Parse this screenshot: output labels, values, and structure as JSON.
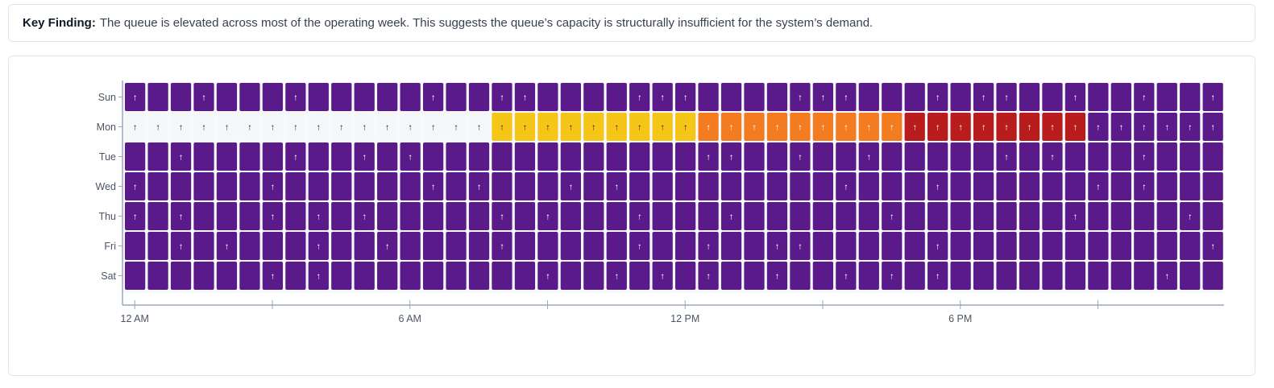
{
  "finding": {
    "label": "Key Finding:",
    "text": "The queue is elevated across most of the operating week. This suggests the queue’s capacity is structurally insufficient for the system’s demand."
  },
  "chart_data": {
    "type": "heatmap",
    "title": "",
    "xlabel": "",
    "ylabel": "",
    "rows": [
      "Sun",
      "Mon",
      "Tue",
      "Wed",
      "Thu",
      "Fri",
      "Sat"
    ],
    "intervals_per_row": 48,
    "interval_minutes": 30,
    "x_ticks": [
      {
        "hour": 0,
        "label": "12 AM"
      },
      {
        "hour": 3,
        "label": ""
      },
      {
        "hour": 6,
        "label": "6 AM"
      },
      {
        "hour": 9,
        "label": ""
      },
      {
        "hour": 12,
        "label": "12 PM"
      },
      {
        "hour": 15,
        "label": ""
      },
      {
        "hour": 18,
        "label": "6 PM"
      },
      {
        "hour": 21,
        "label": ""
      }
    ],
    "level_colors": {
      "none": "#f5f7fb",
      "yellow": "#f5c518",
      "orange": "#f47c20",
      "red": "#b91c1c",
      "purple": "#5b1a8a"
    },
    "arrow_colors": {
      "light": "#ffffff",
      "dark": "#2d2d2d"
    },
    "arrow_glyph": "↑",
    "cells": {
      "Sun": "PPPPPPPPPPPPPPPPPPPPPPPPPPPPPPPPPPPPPPPPPPPPPPPP",
      "Mon": "NNNNNNNNNNNNNNNNYYYYYYYYYOOOOOOOOOOOOOOOOOPPPPPP",
      "Tue": "PPPPPPPPPPPPPPPPPPPPPPPPPPPPPPPPPPPPPPPPPPPPPPPP",
      "Wed": "PPPPPPPPPPPPPPPPPPPPPPPPPPPPPPPPPPPPPPPPPPPPPPPP",
      "Thu": "PPPPPPPPPPPPPPPPPPPPPPPPPPPPPPPPPPPPPPPPPPPPPPPP",
      "Fri": "PPPPPPPPPPPPPPPPPPPPPPPPPPPPPPPPPPPPPPPPPPPPPPPP",
      "Sat": "PPPPPPPPPPPPPPPPPPPPPPPPPPPPPPPPPPPPPPPPPPPPPPPP"
    },
    "cells_red_override": {
      "Mon": [
        34,
        35,
        36,
        37,
        38,
        39,
        40,
        41
      ]
    },
    "arrows": {
      "Sun": [
        0,
        3,
        7,
        13,
        16,
        17,
        22,
        23,
        24,
        29,
        30,
        31,
        35,
        37,
        38,
        41,
        44,
        47
      ],
      "Mon": [
        0,
        1,
        2,
        3,
        4,
        5,
        6,
        7,
        8,
        9,
        10,
        11,
        12,
        13,
        14,
        15,
        16,
        17,
        18,
        19,
        20,
        21,
        22,
        23,
        24,
        25,
        26,
        27,
        28,
        29,
        30,
        31,
        32,
        33,
        34,
        35,
        36,
        37,
        38,
        39,
        40,
        41,
        42,
        43,
        44,
        45,
        46,
        47
      ],
      "Tue": [
        2,
        7,
        10,
        12,
        25,
        26,
        29,
        32,
        38,
        40,
        44
      ],
      "Wed": [
        0,
        6,
        13,
        15,
        19,
        21,
        31,
        35,
        42,
        44
      ],
      "Thu": [
        0,
        2,
        6,
        8,
        10,
        16,
        18,
        22,
        26,
        33,
        41,
        46
      ],
      "Fri": [
        2,
        4,
        8,
        11,
        16,
        22,
        25,
        28,
        29,
        35,
        47
      ],
      "Sat": [
        6,
        8,
        18,
        21,
        23,
        25,
        28,
        31,
        33,
        35,
        45
      ]
    }
  }
}
